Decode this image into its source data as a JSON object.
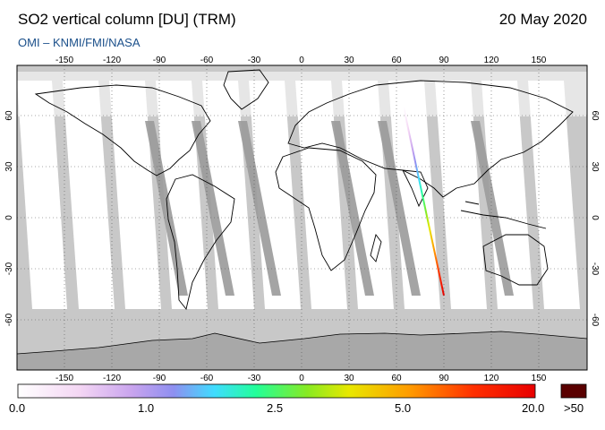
{
  "header": {
    "title": "SO2 vertical column [DU] (TRM)",
    "subtitle": "OMI  –  KNMI/FMI/NASA",
    "date": "20 May 2020"
  },
  "axes": {
    "lon_ticks": [
      "-150",
      "-120",
      "-90",
      "-60",
      "-30",
      "0",
      "30",
      "60",
      "90",
      "120",
      "150"
    ],
    "lat_ticks": [
      "60",
      "30",
      "0",
      "-30",
      "-60"
    ]
  },
  "colorbar": {
    "labels": [
      "0.0",
      "1.0",
      "2.5",
      "5.0",
      "20.0",
      ">50"
    ],
    "overflow_color": "#5a0000"
  },
  "colors": {
    "swath": "#ffffff",
    "no_data": "#c8c8c8",
    "gap_stripe": "#9b9b9b",
    "antarctica": "#a8a8a8",
    "subtitle": "#1a4f8a"
  }
}
